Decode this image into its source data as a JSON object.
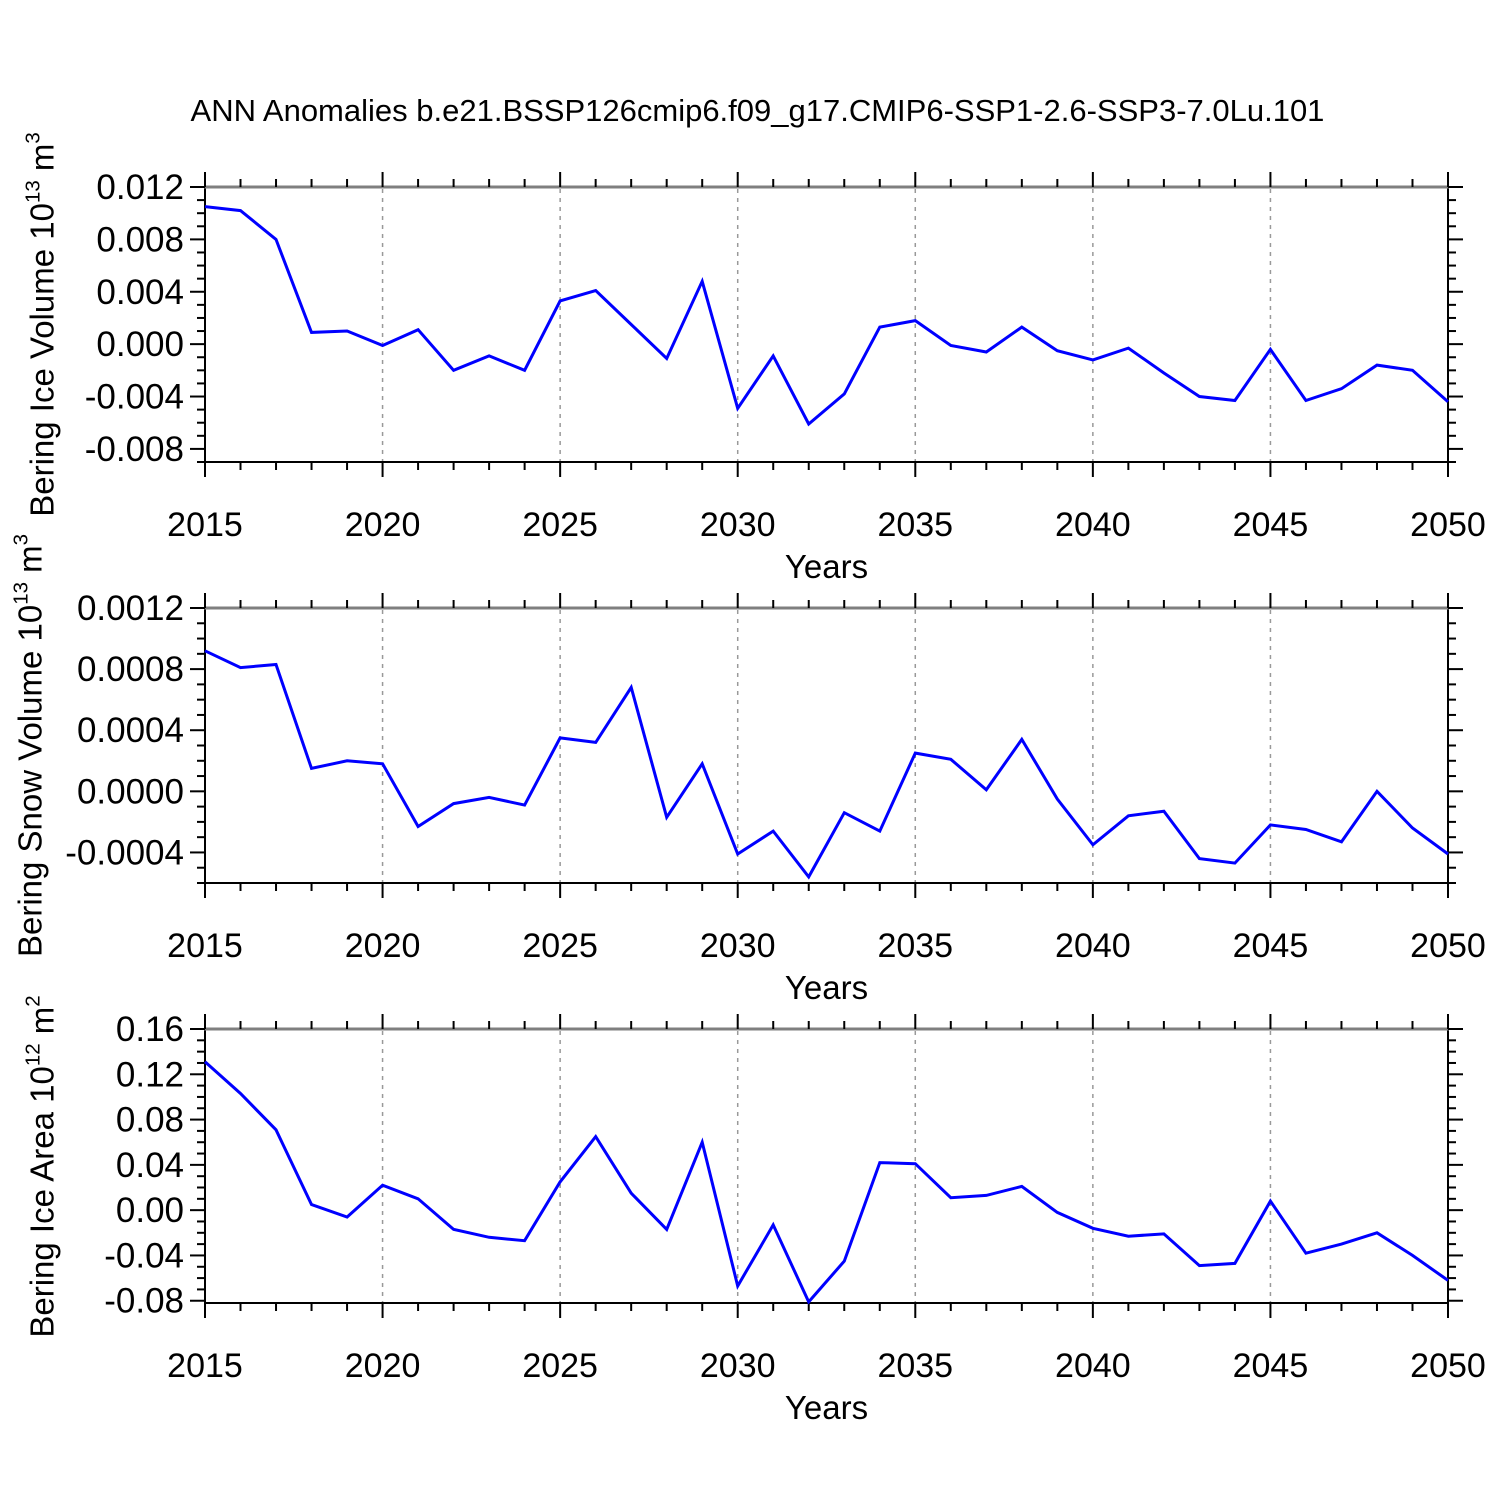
{
  "title": "ANN Anomalies b.e21.BSSP126cmip6.f09_g17.CMIP6-SSP1-2.6-SSP3-7.0Lu.101",
  "x_axis": {
    "label": "Years",
    "years": [
      2015,
      2016,
      2017,
      2018,
      2019,
      2020,
      2021,
      2022,
      2023,
      2024,
      2025,
      2026,
      2027,
      2028,
      2029,
      2030,
      2031,
      2032,
      2033,
      2034,
      2035,
      2036,
      2037,
      2038,
      2039,
      2040,
      2041,
      2042,
      2043,
      2044,
      2045,
      2046,
      2047,
      2048,
      2049,
      2050
    ],
    "major_tick_labels": [
      "2015",
      "2020",
      "2025",
      "2030",
      "2035",
      "2040",
      "2045",
      "2050"
    ],
    "grid_years": [
      2020,
      2025,
      2030,
      2035,
      2040,
      2045
    ],
    "range": [
      2015,
      2050
    ]
  },
  "colors": {
    "line": "#0000ff",
    "frame": "#000000",
    "frame_top": "#7f7f7f",
    "gridline": "#999999",
    "background": "#ffffff"
  },
  "chart_data": [
    {
      "id": "ice-volume",
      "type": "line",
      "ylabel": "Bering Ice Volume 10^13 m^3",
      "ylabel_parts": {
        "prefix": "Bering Ice Volume 10",
        "exp": "13",
        "unit": " m",
        "unit_exp": "3"
      },
      "xlabel": "Years",
      "ylim": [
        -0.009,
        0.012
      ],
      "ytick_values": [
        0.012,
        0.008,
        0.004,
        0.0,
        -0.004,
        -0.008
      ],
      "ytick_labels": [
        "0.012",
        "0.008",
        "0.004",
        "0.000",
        "-0.004",
        "-0.008"
      ],
      "y_minor_step": 0.001,
      "grid": "vertical-dashed",
      "legend": "none",
      "values": [
        0.0105,
        0.0102,
        0.008,
        0.0009,
        0.001,
        -0.0001,
        0.0011,
        -0.002,
        -0.0009,
        -0.002,
        0.0033,
        0.0041,
        0.0015,
        -0.0011,
        0.0048,
        -0.0049,
        -0.0009,
        -0.0061,
        -0.0038,
        0.0013,
        0.0018,
        -0.0001,
        -0.0006,
        0.0013,
        -0.0005,
        -0.0012,
        -0.0003,
        -0.0022,
        -0.004,
        -0.0043,
        -0.0004,
        -0.0043,
        -0.0034,
        -0.0016,
        -0.002,
        -0.0044
      ]
    },
    {
      "id": "snow-volume",
      "type": "line",
      "ylabel": "Bering Snow Volume 10^13 m^3",
      "ylabel_parts": {
        "prefix": "Bering Snow Volume 10",
        "exp": "13",
        "unit": " m",
        "unit_exp": "3"
      },
      "xlabel": "Years",
      "ylim": [
        -0.0006,
        0.0012
      ],
      "ytick_values": [
        0.0012,
        0.0008,
        0.0004,
        0.0,
        -0.0004
      ],
      "ytick_labels": [
        "0.0012",
        "0.0008",
        "0.0004",
        "0.0000",
        "-0.0004"
      ],
      "y_minor_step": 0.0001,
      "grid": "vertical-dashed",
      "legend": "none",
      "values": [
        0.00092,
        0.00081,
        0.00083,
        0.00015,
        0.0002,
        0.00018,
        -0.00023,
        -8e-05,
        -4e-05,
        -9e-05,
        0.00035,
        0.00032,
        0.00068,
        -0.00017,
        0.00018,
        -0.00041,
        -0.00026,
        -0.00056,
        -0.00014,
        -0.00026,
        0.00025,
        0.00021,
        1e-05,
        0.00034,
        -5e-05,
        -0.00035,
        -0.00016,
        -0.00013,
        -0.00044,
        -0.00047,
        -0.00022,
        -0.00025,
        -0.00033,
        0.0,
        -0.00024,
        -0.00041
      ]
    },
    {
      "id": "ice-area",
      "type": "line",
      "ylabel": "Bering Ice Area 10^12 m^2",
      "ylabel_parts": {
        "prefix": "Bering Ice Area 10",
        "exp": "12",
        "unit": " m",
        "unit_exp": "2"
      },
      "xlabel": "Years",
      "ylim": [
        -0.082,
        0.16
      ],
      "ytick_values": [
        0.16,
        0.12,
        0.08,
        0.04,
        0.0,
        -0.04,
        -0.08
      ],
      "ytick_labels": [
        "0.16",
        "0.12",
        "0.08",
        "0.04",
        "0.00",
        "-0.04",
        "-0.08"
      ],
      "y_minor_step": 0.01,
      "grid": "vertical-dashed",
      "legend": "none",
      "values": [
        0.131,
        0.103,
        0.071,
        0.005,
        -0.006,
        0.022,
        0.01,
        -0.017,
        -0.024,
        -0.027,
        0.025,
        0.065,
        0.015,
        -0.017,
        0.06,
        -0.067,
        -0.013,
        -0.081,
        -0.045,
        0.042,
        0.041,
        0.011,
        0.013,
        0.021,
        -0.002,
        -0.016,
        -0.023,
        -0.021,
        -0.049,
        -0.047,
        0.008,
        -0.038,
        -0.03,
        -0.02,
        -0.04,
        -0.062
      ]
    }
  ]
}
